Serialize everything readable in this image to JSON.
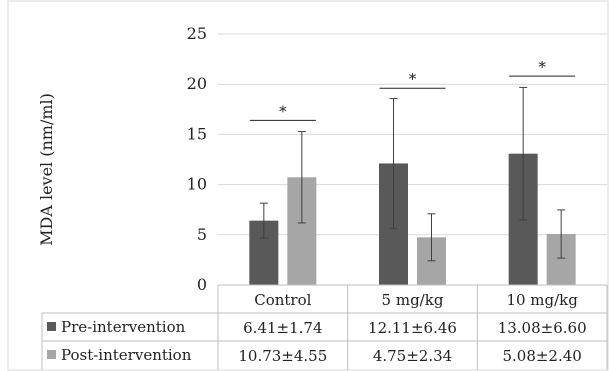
{
  "chart_data": {
    "type": "bar",
    "ylabel": "MDA level (nm/ml)",
    "ylim": [
      0,
      25
    ],
    "yticks": [
      0,
      5,
      10,
      15,
      20,
      25
    ],
    "grid": true,
    "categories": [
      "Control",
      "5 mg/kg",
      "10 mg/kg"
    ],
    "series": [
      {
        "name": "Pre-intervention",
        "color": "#595959",
        "values": [
          6.41,
          12.11,
          13.08
        ],
        "errors": [
          1.74,
          6.46,
          6.6
        ],
        "table_labels": [
          "6.41±1.74",
          "12.11±6.46",
          "13.08±6.60"
        ]
      },
      {
        "name": "Post-intervention",
        "color": "#a6a6a6",
        "values": [
          10.73,
          4.75,
          5.08
        ],
        "errors": [
          4.55,
          2.34,
          2.4
        ],
        "table_labels": [
          "10.73±4.55",
          "4.75±2.34",
          "5.08±2.40"
        ]
      }
    ],
    "significance": [
      {
        "category": 0,
        "label": "*",
        "y": 16.4
      },
      {
        "category": 1,
        "label": "*",
        "y": 19.6
      },
      {
        "category": 2,
        "label": "*",
        "y": 20.8
      }
    ],
    "legend_placement": "data table"
  }
}
